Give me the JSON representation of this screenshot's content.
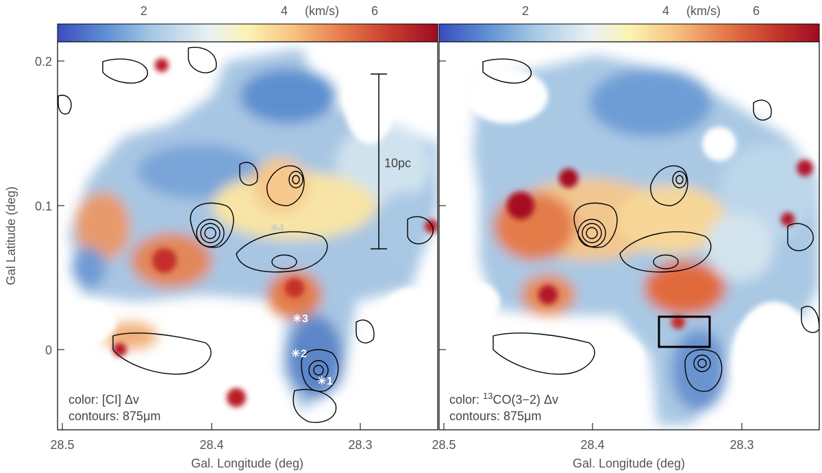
{
  "colorbar": {
    "tick_labels": [
      "2",
      "4",
      "6"
    ],
    "unit": "(km/s)",
    "colors": [
      "#3b4cc0",
      "#5e8fd3",
      "#a6c8e6",
      "#e9f2f3",
      "#fbf3b4",
      "#f8c280",
      "#e57a4a",
      "#c73a2c",
      "#9e0b24"
    ]
  },
  "axes": {
    "xlabel": "Gal. Longitude (deg)",
    "ylabel": "Gal Latitude (deg)",
    "x_tick_labels": [
      "28.5",
      "28.4",
      "28.3"
    ],
    "x_tick_labels_right": [
      "28.5",
      "28.4",
      "28.3"
    ],
    "y_tick_labels": [
      "0.2",
      "0.1",
      "0"
    ]
  },
  "left_panel": {
    "legend_color": "color: [CI] Δv",
    "legend_contours": "contours: 875μm",
    "scale_bar_label": "10pc",
    "markers": [
      "1",
      "2",
      "3",
      "4"
    ]
  },
  "right_panel": {
    "legend_color_prefix": "color: ",
    "legend_color_sup": "13",
    "legend_color_rest": "CO(3−2) Δv",
    "legend_contours": "contours: 875μm"
  }
}
